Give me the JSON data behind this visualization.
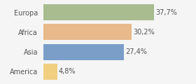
{
  "categories": [
    "Europa",
    "Africa",
    "Asia",
    "America"
  ],
  "values": [
    37.7,
    30.2,
    27.4,
    4.8
  ],
  "labels": [
    "37,7%",
    "30,2%",
    "27,4%",
    "4,8%"
  ],
  "bar_colors": [
    "#a8bc8f",
    "#e8b98a",
    "#7b9ec9",
    "#f0d080"
  ],
  "background_color": "#f5f5f5",
  "xlim": [
    0,
    44
  ],
  "bar_height": 0.82,
  "label_fontsize": 7.0,
  "cat_fontsize": 7.0
}
